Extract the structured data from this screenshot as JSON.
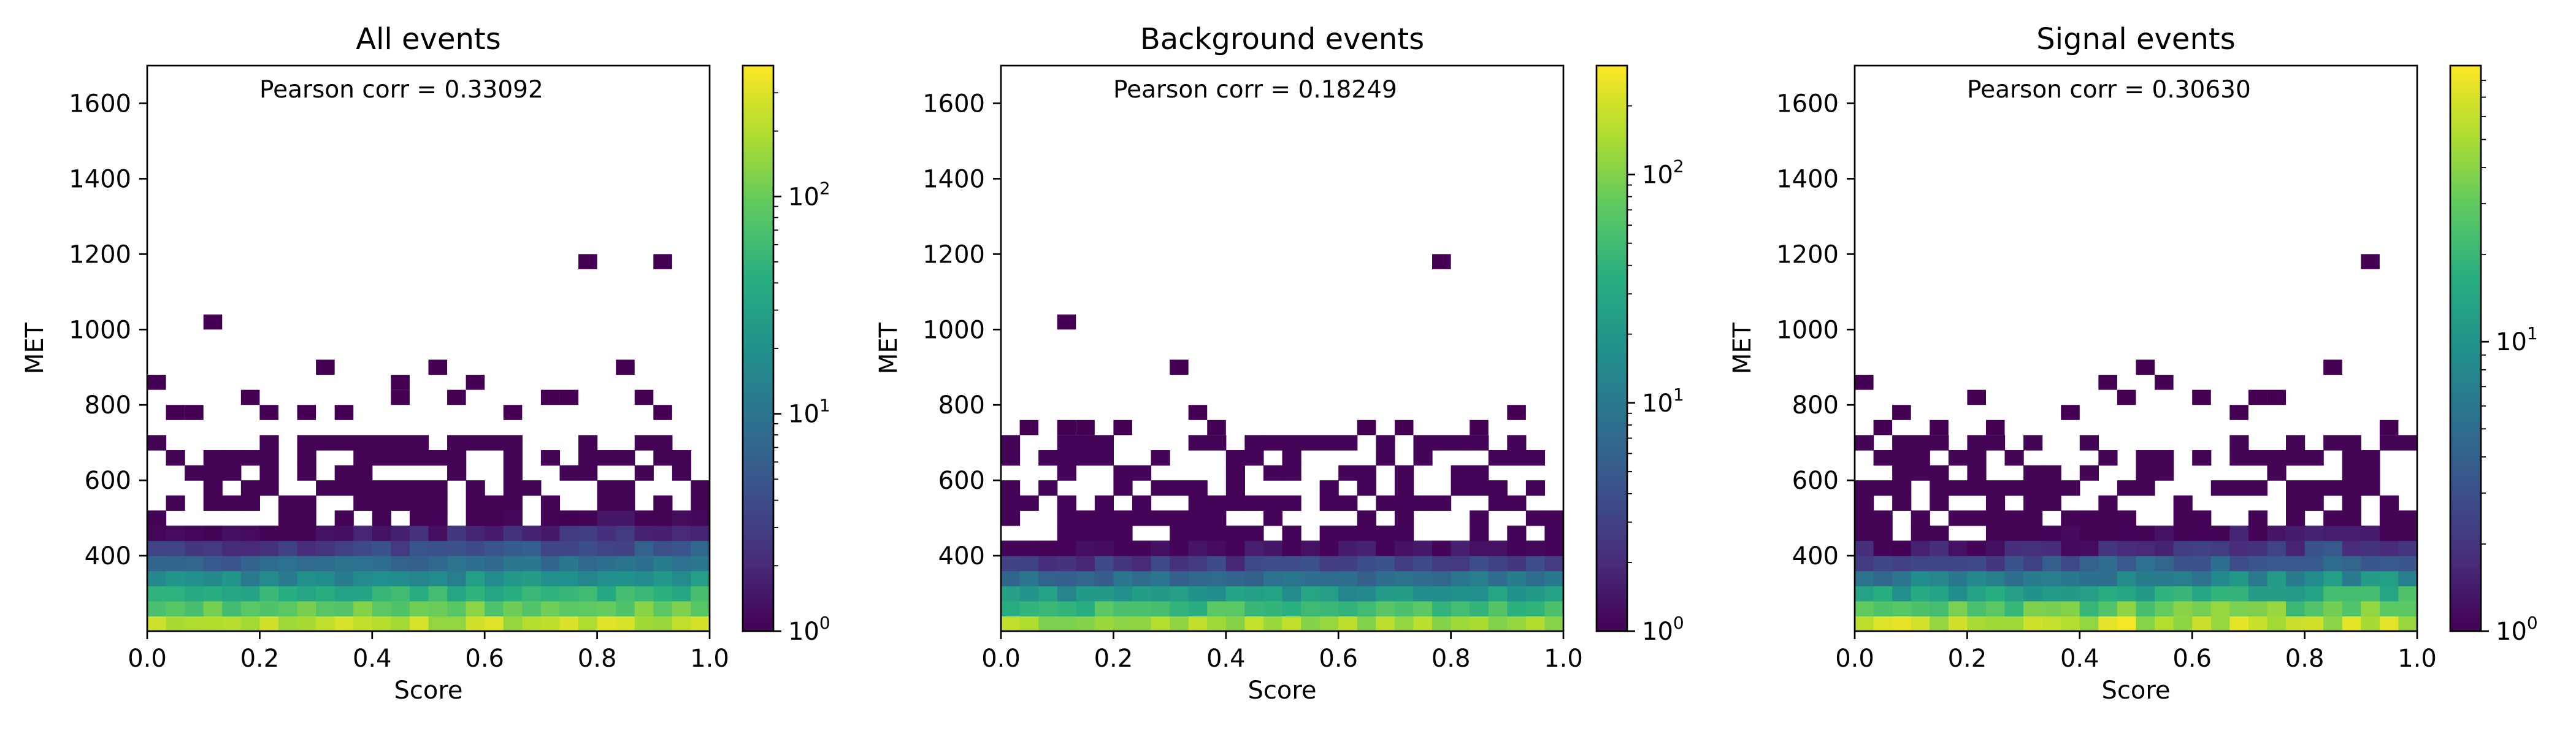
{
  "figure": {
    "panels": [
      {
        "title": "All events",
        "xlabel": "Score",
        "ylabel": "MET",
        "annotation": "Pearson corr = 0.33092",
        "x_ticks": [
          "0.0",
          "0.2",
          "0.4",
          "0.6",
          "0.8",
          "1.0"
        ],
        "y_ticks": [
          "400",
          "600",
          "800",
          "1000",
          "1200",
          "1400",
          "1600"
        ],
        "colorbar_ticks": [
          "10",
          "10",
          "10"
        ],
        "colorbar_tick_exponents": [
          "0",
          "1",
          "2"
        ]
      },
      {
        "title": "Background events",
        "xlabel": "Score",
        "ylabel": "MET",
        "annotation": "Pearson corr = 0.18249",
        "x_ticks": [
          "0.0",
          "0.2",
          "0.4",
          "0.6",
          "0.8",
          "1.0"
        ],
        "y_ticks": [
          "400",
          "600",
          "800",
          "1000",
          "1200",
          "1400",
          "1600"
        ],
        "colorbar_ticks": [
          "10",
          "10",
          "10"
        ],
        "colorbar_tick_exponents": [
          "0",
          "1",
          "2"
        ]
      },
      {
        "title": "Signal events",
        "xlabel": "Score",
        "ylabel": "MET",
        "annotation": "Pearson corr = 0.30630",
        "x_ticks": [
          "0.0",
          "0.2",
          "0.4",
          "0.6",
          "0.8",
          "1.0"
        ],
        "y_ticks": [
          "400",
          "600",
          "800",
          "1000",
          "1200",
          "1400",
          "1600"
        ],
        "colorbar_ticks": [
          "10",
          "10"
        ],
        "colorbar_tick_exponents": [
          "0",
          "1"
        ]
      }
    ]
  },
  "chart_data": [
    {
      "type": "heatmap",
      "title": "All events",
      "xlabel": "Score",
      "ylabel": "MET",
      "xlim": [
        0,
        1
      ],
      "ylim": [
        200,
        1700
      ],
      "x_bins": 30,
      "y_bins": 50,
      "color_scale": "log",
      "colormap": "viridis",
      "colorbar_range": [
        1,
        400
      ],
      "pearson_corr": 0.33092,
      "density_description": "counts ~300 near MET 200-300 decreasing to ~1-3 at MET 550-700",
      "sparse_points": [
        [
          0.01,
          875
        ],
        [
          0.11,
          1025
        ],
        [
          0.32,
          915
        ],
        [
          0.44,
          875
        ],
        [
          0.52,
          915
        ],
        [
          0.58,
          875
        ],
        [
          0.71,
          835
        ],
        [
          0.78,
          1175
        ],
        [
          0.86,
          915
        ],
        [
          0.91,
          1175
        ],
        [
          0.04,
          795
        ],
        [
          0.09,
          795
        ],
        [
          0.17,
          835
        ],
        [
          0.22,
          795
        ],
        [
          0.28,
          795
        ],
        [
          0.34,
          795
        ],
        [
          0.46,
          835
        ],
        [
          0.54,
          835
        ],
        [
          0.64,
          795
        ],
        [
          0.75,
          835
        ],
        [
          0.88,
          835
        ],
        [
          0.93,
          795
        ]
      ]
    },
    {
      "type": "heatmap",
      "title": "Background events",
      "xlabel": "Score",
      "ylabel": "MET",
      "xlim": [
        0,
        1
      ],
      "ylim": [
        200,
        1700
      ],
      "x_bins": 30,
      "y_bins": 50,
      "color_scale": "log",
      "colormap": "viridis",
      "colorbar_range": [
        1,
        300
      ],
      "pearson_corr": 0.18249,
      "density_description": "counts ~200 near MET 200-300 decreasing to ~1-3 at MET 550-650",
      "sparse_points": [
        [
          0.11,
          1025
        ],
        [
          0.32,
          915
        ],
        [
          0.78,
          1175
        ],
        [
          0.91,
          795
        ],
        [
          0.04,
          755
        ],
        [
          0.12,
          755
        ],
        [
          0.16,
          755
        ],
        [
          0.22,
          755
        ],
        [
          0.36,
          795
        ],
        [
          0.38,
          755
        ],
        [
          0.64,
          755
        ],
        [
          0.72,
          755
        ],
        [
          0.86,
          755
        ]
      ]
    },
    {
      "type": "heatmap",
      "title": "Signal events",
      "xlabel": "Score",
      "ylabel": "MET",
      "xlim": [
        0,
        1
      ],
      "ylim": [
        200,
        1700
      ],
      "x_bins": 30,
      "y_bins": 50,
      "color_scale": "log",
      "colormap": "viridis",
      "colorbar_range": [
        1,
        90
      ],
      "pearson_corr": 0.3063,
      "density_description": "counts ~60-90 near MET 200-350 decreasing to ~1-3 at MET 550-700",
      "sparse_points": [
        [
          0.01,
          875
        ],
        [
          0.04,
          755
        ],
        [
          0.09,
          795
        ],
        [
          0.15,
          755
        ],
        [
          0.22,
          835
        ],
        [
          0.25,
          755
        ],
        [
          0.38,
          795
        ],
        [
          0.46,
          875
        ],
        [
          0.48,
          835
        ],
        [
          0.52,
          915
        ],
        [
          0.56,
          875
        ],
        [
          0.62,
          835
        ],
        [
          0.68,
          795
        ],
        [
          0.71,
          835
        ],
        [
          0.75,
          835
        ],
        [
          0.86,
          915
        ],
        [
          0.91,
          1175
        ],
        [
          0.95,
          755
        ]
      ]
    }
  ]
}
